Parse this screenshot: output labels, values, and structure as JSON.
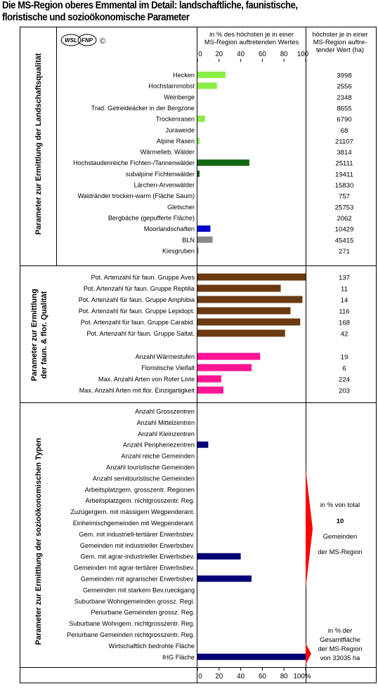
{
  "title_line1": "Die MS-Region oberes Emmental im Detail: landschaftliche, faunistische,",
  "title_line2": "floristische und sozioökonomische Parameter",
  "logo": {
    "wsl": "WSL",
    "fnp": "FNP",
    "copyright": "©"
  },
  "header_mid": [
    "in % des höchsten je in einer",
    "MS-Region auftretenden Wertes"
  ],
  "header_right": [
    "höchster je in einer",
    "MS-Region auftre-",
    "tender Wert (ha)"
  ],
  "axis_ticks_top": [
    "0",
    "20",
    "40",
    "60",
    "80",
    "100"
  ],
  "axis_ticks_bottom": [
    "0",
    "20",
    "40",
    "60",
    "80",
    "100%"
  ],
  "section_titles": {
    "s1": [
      "Parameter zur Ermittlung der Landschaftsqualität"
    ],
    "s2": [
      "Parameter zur Ermittlung",
      "der faun. & flor. Qualität"
    ],
    "s3": [
      "Parameter zur Ermittlung der sozioökonomischen Typen"
    ]
  },
  "annotation_1": [
    "in % von total",
    "10",
    "Gemeinden",
    "der MS-Region"
  ],
  "annotation_2": [
    "in % der",
    "Gesamtfläche",
    "der MS-Region",
    "von 33035 ha"
  ],
  "colors": {
    "lightgreen": "#88ee44",
    "darkgreen": "#116611",
    "blue": "#0000cc",
    "gray": "#888888",
    "brown": "#6b3a10",
    "pink": "#ff1493",
    "navy": "#000077",
    "red": "#ff0000"
  },
  "chart_data": {
    "type": "bar",
    "orientation": "horizontal",
    "xlim": [
      0,
      100
    ],
    "sections": [
      {
        "rows": [
          {
            "label": "Hecken",
            "value": 26,
            "ref": "3998",
            "color": "lightgreen"
          },
          {
            "label": "Hochstammobst",
            "value": 18,
            "ref": "2556",
            "color": "lightgreen"
          },
          {
            "label": "Weinberge",
            "value": 0,
            "ref": "2348",
            "color": "lightgreen"
          },
          {
            "label": "Trad. Getreideäcker in der Bergzone",
            "value": 0,
            "ref": "8655",
            "color": "lightgreen"
          },
          {
            "label": "Trockenrasen",
            "value": 7,
            "ref": "6790",
            "color": "lightgreen"
          },
          {
            "label": "Juraweide",
            "value": 0,
            "ref": "68",
            "color": "lightgreen"
          },
          {
            "label": "Alpine Rasen",
            "value": 2,
            "ref": "21107",
            "color": "lightgreen"
          },
          {
            "label": "Wärmelieb. Wälder",
            "value": 0,
            "ref": "3814",
            "color": "darkgreen"
          },
          {
            "label": "Hochstaudenreiche Fichten-/Tannenwälder",
            "value": 48,
            "ref": "25111",
            "color": "darkgreen"
          },
          {
            "label": "subalpine Fichtenwälder",
            "value": 2,
            "ref": "19411",
            "color": "darkgreen"
          },
          {
            "label": "Lärchen-Arvenwälder",
            "value": 0,
            "ref": "15830",
            "color": "darkgreen"
          },
          {
            "label": "Waldränder trocken-warm (Fläche Saum)",
            "value": 0,
            "ref": "757",
            "color": "darkgreen"
          },
          {
            "label": "Gletscher",
            "value": 0,
            "ref": "25753",
            "color": "darkgreen"
          },
          {
            "label": "Bergbäche (gepufferte Fläche)",
            "value": 0,
            "ref": "2062",
            "color": "blue"
          },
          {
            "label": "Moorlandschaften",
            "value": 12,
            "ref": "10429",
            "color": "blue"
          },
          {
            "label": "BLN",
            "value": 14,
            "ref": "45415",
            "color": "gray"
          },
          {
            "label": "Kiesgruben",
            "value": 1,
            "ref": "271",
            "color": "gray"
          }
        ]
      },
      {
        "rows": [
          {
            "label": "Pot. Artenzahl für faun. Gruppe Aves",
            "value": 100,
            "ref": "137",
            "color": "brown"
          },
          {
            "label": "Pot. Artenzahl für faun. Gruppe Reptilia",
            "value": 77,
            "ref": "11",
            "color": "brown"
          },
          {
            "label": "Pot. Artenzahl für faun. Gruppe Amphibia",
            "value": 97,
            "ref": "14",
            "color": "brown"
          },
          {
            "label": "Pot. Artenzahl für faun. Gruppe Lepidopt.",
            "value": 86,
            "ref": "116",
            "color": "brown"
          },
          {
            "label": "Pot. Artenzahl für faun. Gruppe Carabid.",
            "value": 95,
            "ref": "168",
            "color": "brown"
          },
          {
            "label": "Pot. Artenzahl für faun. Gruppe Saltat.",
            "value": 81,
            "ref": "42",
            "color": "brown"
          },
          {
            "label": "Anzahl Wärmestufen",
            "value": 58,
            "ref": "19",
            "color": "pink"
          },
          {
            "label": "Floristische Vielfalt",
            "value": 50,
            "ref": "6",
            "color": "pink"
          },
          {
            "label": "Max. Anzahl Arten von Roter Liste",
            "value": 22,
            "ref": "224",
            "color": "pink"
          },
          {
            "label": "Max. Anzahl Arten mit flor. Einzigartigkeit",
            "value": 24,
            "ref": "203",
            "color": "pink"
          }
        ]
      },
      {
        "rows": [
          {
            "label": "Anzahl Grosszentren",
            "value": 0,
            "color": "navy"
          },
          {
            "label": "Anzahl Mittelzentren",
            "value": 0,
            "color": "navy"
          },
          {
            "label": "Anzahl Kleinzentren",
            "value": 0,
            "color": "navy"
          },
          {
            "label": "Anzahl Peripheriezentren",
            "value": 10,
            "color": "navy"
          },
          {
            "label": "Anzahl reiche Gemeinden",
            "value": 0,
            "color": "navy"
          },
          {
            "label": "Anzahl touristische Gemeinden",
            "value": 0,
            "color": "navy"
          },
          {
            "label": "Anzahl semitouristische Gemeinden",
            "value": 0,
            "color": "navy"
          },
          {
            "label": "Arbeitsplatzgem. grosszentr. Regionen",
            "value": 0,
            "color": "navy"
          },
          {
            "label": "Arbeitsplatzgem. nichtgrosszentr. Reg.",
            "value": 0,
            "color": "navy"
          },
          {
            "label": "Zuzügergem. mit mässigem Wegpenderant.",
            "value": 0,
            "color": "navy"
          },
          {
            "label": "Einheimischgemeinden mit Wegpenderant.",
            "value": 0,
            "color": "navy"
          },
          {
            "label": "Gem. mit industriell-tertiärer Erwerbsbev.",
            "value": 0,
            "color": "navy"
          },
          {
            "label": "Gemeinden mit industrieller Erwerbsbev.",
            "value": 0,
            "color": "navy"
          },
          {
            "label": "Gem. mit agrar-industrieller Erwerbsbev.",
            "value": 40,
            "color": "navy"
          },
          {
            "label": "Gemeinden mit agrar-tertiärer Erwerbsbev.",
            "value": 0,
            "color": "navy"
          },
          {
            "label": "Gemeinden mit agrarischer Erwerbsbev.",
            "value": 50,
            "color": "navy"
          },
          {
            "label": "Gemeinden mit starkem Bev.rueckgang",
            "value": 0,
            "color": "navy"
          },
          {
            "label": "Suburbane Wohngemeinden grossz. Regi.",
            "value": 0,
            "color": "navy"
          },
          {
            "label": "Periurbane Gemeinden grossz. Reg.",
            "value": 0,
            "color": "navy"
          },
          {
            "label": "Suburbane Wohngem. nichtgrosszentr. Reg.",
            "value": 0,
            "color": "navy"
          },
          {
            "label": "Periurbane Gemeinden nichtgrosszentr. Reg.",
            "value": 0,
            "color": "navy"
          },
          {
            "label": "Wirtschaftlich bedrohte Fläche",
            "value": 0,
            "color": "navy"
          },
          {
            "label": "IHG Fläche",
            "value": 100,
            "color": "navy"
          }
        ]
      }
    ]
  }
}
